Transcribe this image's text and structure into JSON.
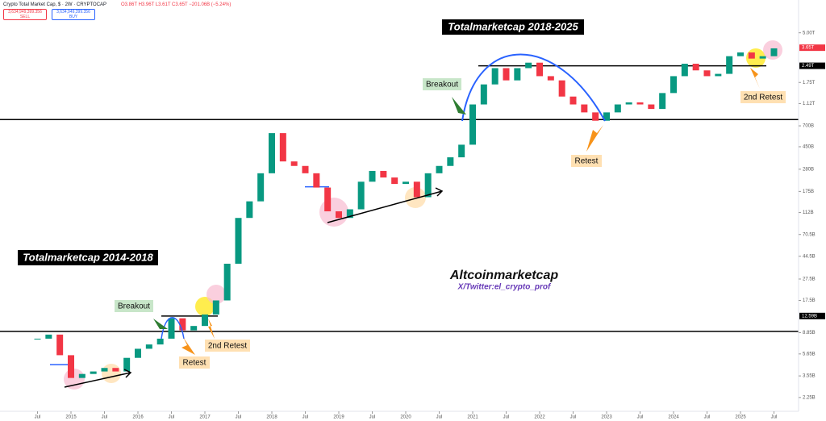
{
  "header": {
    "symbol": "Crypto Total Market Cap, $ · 2W · CRYPTOCAP",
    "ohlc": "O3.86T H3.96T L3.61T C3.65T −201.06B (−5.24%)",
    "sell_price": "3,634,949,399.356",
    "sell": "SELL",
    "buy_price": "3,634,949,399.356",
    "buy": "BUY"
  },
  "chart_data": {
    "type": "candlestick",
    "log_scale": true,
    "grid": false,
    "up_color": "#089981",
    "down_color": "#f23645",
    "annotations": [
      "Totalmarketcap 2018-2025",
      "Totalmarketcap 2014-2018",
      "Breakout",
      "Breakout",
      "Retest",
      "Retest",
      "2nd Retest",
      "2nd Retest",
      "Altcoinmarketcap",
      "X/Twitter:el_crypto_prof"
    ],
    "x": [
      "2014-07",
      "2014-09",
      "2014-11",
      "2015-01",
      "2015-03",
      "2015-05",
      "2015-07",
      "2015-09",
      "2015-11",
      "2016-01",
      "2016-03",
      "2016-05",
      "2016-07",
      "2016-09",
      "2016-11",
      "2017-01",
      "2017-03",
      "2017-05",
      "2017-07",
      "2017-09",
      "2017-11",
      "2018-01",
      "2018-03",
      "2018-05",
      "2018-07",
      "2018-09",
      "2018-11",
      "2019-01",
      "2019-03",
      "2019-05",
      "2019-07",
      "2019-09",
      "2019-11",
      "2020-01",
      "2020-03",
      "2020-05",
      "2020-07",
      "2020-09",
      "2020-11",
      "2021-01",
      "2021-03",
      "2021-05",
      "2021-07",
      "2021-09",
      "2021-11",
      "2022-01",
      "2022-03",
      "2022-05",
      "2022-07",
      "2022-09",
      "2022-11",
      "2023-01",
      "2023-03",
      "2023-05",
      "2023-07",
      "2023-09",
      "2023-11",
      "2024-01",
      "2024-03",
      "2024-05",
      "2024-07",
      "2024-09",
      "2024-11",
      "2025-01",
      "2025-03",
      "2025-05",
      "2025-07"
    ],
    "values": [
      7800000000.0,
      8500000000.0,
      5500000000.0,
      3400000000.0,
      3700000000.0,
      3900000000.0,
      4200000000.0,
      3900000000.0,
      5200000000.0,
      6300000000.0,
      6900000000.0,
      7800000000.0,
      12000000000.0,
      9300000000.0,
      10200000000.0,
      13000000000.0,
      17500000000.0,
      38000000000.0,
      100000000000.0,
      142000000000.0,
      257000000000.0,
      600000000000.0,
      330000000000.0,
      300000000000.0,
      257000000000.0,
      190000000000.0,
      115000000000.0,
      100000000000.0,
      120000000000.0,
      215000000000.0,
      270000000000.0,
      235000000000.0,
      205000000000.0,
      215000000000.0,
      155000000000.0,
      257000000000.0,
      300000000000.0,
      360000000000.0,
      470000000000.0,
      1100000000000.0,
      1680000000000.0,
      2370000000000.0,
      1830000000000.0,
      2370000000000.0,
      2660000000000.0,
      2000000000000.0,
      1830000000000.0,
      1300000000000.0,
      1100000000000.0,
      930000000000.0,
      780000000000.0,
      930000000000.0,
      1100000000000.0,
      1150000000000.0,
      1100000000000.0,
      1000000000000.0,
      1400000000000.0,
      2000000000000.0,
      2600000000000.0,
      2260000000000.0,
      2000000000000.0,
      2100000000000.0,
      3050000000000.0,
      3300000000000.0,
      2900000000000.0,
      3050000000000.0,
      3600000000000.0
    ],
    "ylim": [
      1680000000.0,
      10000000000000.0
    ],
    "yticks": [
      {
        "value": 5000000000000.0,
        "label": "5.00T"
      },
      {
        "value": 1750000000000.0,
        "label": "1.75T"
      },
      {
        "value": 1120000000000.0,
        "label": "1.12T"
      },
      {
        "value": 700000000000.0,
        "label": "700B"
      },
      {
        "value": 450000000000.0,
        "label": "450B"
      },
      {
        "value": 280000000000.0,
        "label": "280B"
      },
      {
        "value": 175000000000.0,
        "label": "175B"
      },
      {
        "value": 112000000000.0,
        "label": "112B"
      },
      {
        "value": 70500000000.0,
        "label": "70.5B"
      },
      {
        "value": 44500000000.0,
        "label": "44.5B"
      },
      {
        "value": 27500000000.0,
        "label": "27.5B"
      },
      {
        "value": 17500000000.0,
        "label": "17.5B"
      },
      {
        "value": 8850000000.0,
        "label": "8.85B"
      },
      {
        "value": 5650000000.0,
        "label": "5.65B"
      },
      {
        "value": 3550000000.0,
        "label": "3.55B"
      },
      {
        "value": 2250000000.0,
        "label": "2.25B"
      }
    ],
    "xticks": [
      {
        "value": "2014-07",
        "label": "Jul"
      },
      {
        "value": "2015-01",
        "label": "2015"
      },
      {
        "value": "2015-07",
        "label": "Jul"
      },
      {
        "value": "2016-01",
        "label": "2016"
      },
      {
        "value": "2016-07",
        "label": "Jul"
      },
      {
        "value": "2017-01",
        "label": "2017"
      },
      {
        "value": "2017-07",
        "label": "Jul"
      },
      {
        "value": "2018-01",
        "label": "2018"
      },
      {
        "value": "2018-07",
        "label": "Jul"
      },
      {
        "value": "2019-01",
        "label": "2019"
      },
      {
        "value": "2019-07",
        "label": "Jul"
      },
      {
        "value": "2020-01",
        "label": "2020"
      },
      {
        "value": "2020-07",
        "label": "Jul"
      },
      {
        "value": "2021-01",
        "label": "2021"
      },
      {
        "value": "2021-07",
        "label": "Jul"
      },
      {
        "value": "2022-01",
        "label": "2022"
      },
      {
        "value": "2022-07",
        "label": "Jul"
      },
      {
        "value": "2023-01",
        "label": "2023"
      },
      {
        "value": "2023-07",
        "label": "Jul"
      },
      {
        "value": "2024-01",
        "label": "2024"
      },
      {
        "value": "2024-07",
        "label": "Jul"
      },
      {
        "value": "2025-01",
        "label": "2025"
      },
      {
        "value": "2025-07",
        "label": "Jul"
      }
    ],
    "levels": [
      {
        "value": 800000000000.0,
        "color": "#000000"
      },
      {
        "value": 9100000000.0,
        "color": "#000000"
      },
      {
        "value": 2490000000000.0,
        "color": "#000000"
      },
      {
        "value": 12590000000.0,
        "color": "#000000"
      },
      {
        "value": 193000000000.0,
        "color": "#2962ff"
      },
      {
        "value": 4500000000.0,
        "color": "#2962ff"
      }
    ],
    "price_labels": [
      {
        "value": 3650000000000.0,
        "label": "3.65T",
        "color": "#f23645"
      },
      {
        "value": 2490000000000.0,
        "label": "2.49T",
        "color": "#000000"
      },
      {
        "value": 12590000000.0,
        "label": "12.59B",
        "color": "#000000"
      }
    ]
  }
}
